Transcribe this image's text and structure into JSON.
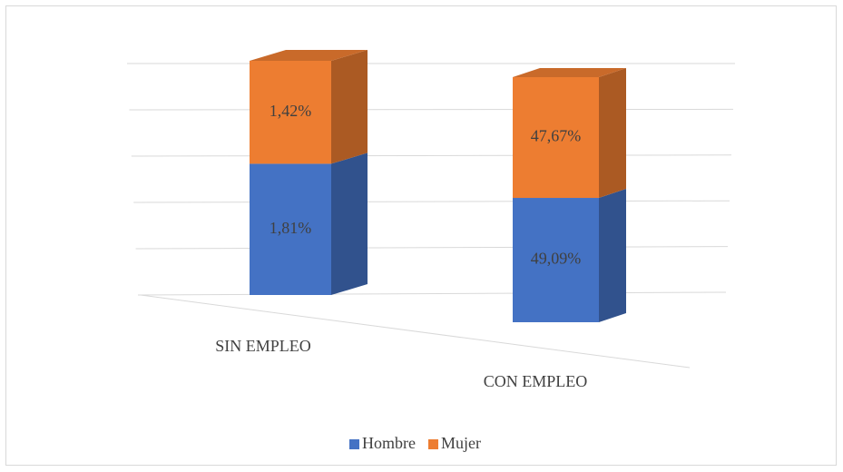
{
  "chart_data": {
    "type": "bar",
    "stacked": "percent",
    "categories": [
      "SIN EMPLEO",
      "CON EMPLEO"
    ],
    "series": [
      {
        "name": "Hombre",
        "color": "#4472c4",
        "values": [
          1.81,
          49.09
        ],
        "value_labels": [
          "1,81%",
          "49,09%"
        ]
      },
      {
        "name": "Mujer",
        "color": "#ed7d31",
        "values": [
          1.42,
          47.67
        ],
        "value_labels": [
          "1,42%",
          "47,67%"
        ]
      }
    ],
    "ylim": [
      0,
      100
    ],
    "yticks": [
      0,
      20,
      40,
      60,
      80,
      100
    ],
    "grid": true,
    "legend": "bottom"
  }
}
